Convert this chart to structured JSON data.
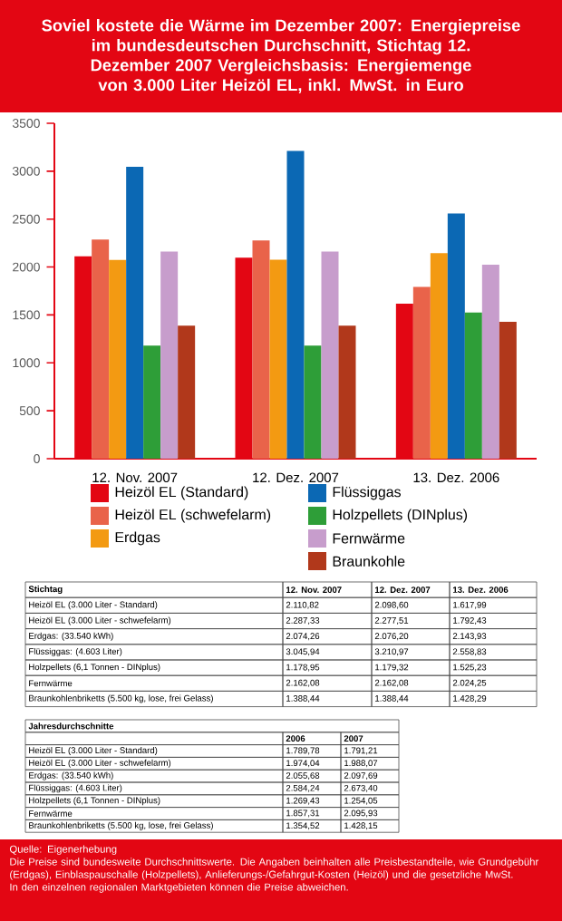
{
  "chart_data": [
    {
      "type": "bar",
      "title": "Soviel kostete die Wärme im Dezember 2007: Energiepreise im bundesdeutschen Durchschnitt, Stichtag 12. Dezember 2007 Vergleichsbasis: Energiemenge von 3.000 Liter Heizöl EL, inkl. MwSt. in Euro",
      "categories": [
        "12. Nov. 2007",
        "12. Dez. 2007",
        "13. Dez. 2006"
      ],
      "series": [
        {
          "name": "Heizöl EL (Standard)",
          "color": "#e30613",
          "values": [
            2110.82,
            2098.6,
            1617.99
          ]
        },
        {
          "name": "Heizöl EL (schwefelarm)",
          "color": "#e9634a",
          "values": [
            2287.33,
            2277.51,
            1792.43
          ]
        },
        {
          "name": "Erdgas",
          "color": "#f39a12",
          "values": [
            2074.26,
            2076.2,
            2143.93
          ]
        },
        {
          "name": "Flüssiggas",
          "color": "#0b68b4",
          "values": [
            3045.94,
            3210.97,
            2558.83
          ]
        },
        {
          "name": "Holzpellets (DINplus)",
          "color": "#2e9e38",
          "values": [
            1178.95,
            1179.32,
            1525.23
          ]
        },
        {
          "name": "Fernwärme",
          "color": "#c79dcc",
          "values": [
            2162.08,
            2162.08,
            2024.25
          ]
        },
        {
          "name": "Braunkohle",
          "color": "#b1381b",
          "values": [
            1388.44,
            1388.44,
            1428.29
          ]
        }
      ],
      "ylim": [
        0,
        3500
      ],
      "yticks": [
        0,
        500,
        1000,
        1500,
        2000,
        2500,
        3000,
        3500
      ],
      "legend": "bottom",
      "annotations": [
        "Quelle: Eigenerhebung",
        "Die Preise sind bundesweite Durchschnittswerte. Die Angaben beinhalten alle Preisbestandteile, wie Grundgebühr (Erdgas), Einblaspauschalle (Holzpellets), Anlieferungs-/Gefahrgut-Kosten (Heizöl) und die gesetzliche MwSt.",
        "In den einzelnen regionalen Marktgebieten können die Preise abweichen."
      ]
    },
    {
      "type": "other",
      "title": "Stichtag",
      "categories": [
        "Heizöl EL (3.000 Liter - Standard)",
        "Heizöl EL (3.000 Liter - schwefelarm)",
        "Erdgas: (33.540 kWh)",
        "Flüssiggas: (4.603 Liter)",
        "Holzpellets (6,1 Tonnen - DINplus)",
        "Fernwärme",
        "Braunkohlenbriketts (5.500 kg, lose, frei Gelass)"
      ],
      "series": [
        {
          "name": "12. Nov. 2007",
          "values": [
            2110.82,
            2287.33,
            2074.26,
            3045.94,
            1178.95,
            2162.08,
            1388.44
          ],
          "value_labels": [
            "2.110,82",
            "2.287,33",
            "2.074,26",
            "3.045,94",
            "1.178,95",
            "2.162,08",
            "1.388,44"
          ]
        },
        {
          "name": "12. Dez. 2007",
          "values": [
            2098.6,
            2277.51,
            2076.2,
            3210.97,
            1179.32,
            2162.08,
            1388.44
          ],
          "value_labels": [
            "2.098,60",
            "2.277,51",
            "2.076,20",
            "3.210,97",
            "1.179,32",
            "2.162,08",
            "1.388,44"
          ]
        },
        {
          "name": "13. Dez. 2006",
          "values": [
            1617.99,
            1792.43,
            2143.93,
            2558.83,
            1525.23,
            2024.25,
            1428.29
          ],
          "value_labels": [
            "1.617,99",
            "1.792,43",
            "2.143,93",
            "2.558,83",
            "1.525,23",
            "2.024,25",
            "1.428,29"
          ]
        }
      ]
    },
    {
      "type": "other",
      "title": "Jahresdurchschnitte",
      "categories": [
        "Heizöl EL (3.000 Liter - Standard)",
        "Heizöl EL (3.000 Liter - schwefelarm)",
        "Erdgas: (33.540 kWh)",
        "Flüssiggas: (4.603 Liter)",
        "Holzpellets (6,1 Tonnen - DINplus)",
        "Fernwärme",
        "Braunkohlenbriketts (5.500 kg, lose, frei Gelass)"
      ],
      "series": [
        {
          "name": "2006",
          "values": [
            1789.78,
            1974.04,
            2055.68,
            2584.24,
            1269.43,
            1857.31,
            1354.52
          ],
          "value_labels": [
            "1.789,78",
            "1.974,04",
            "2.055,68",
            "2.584,24",
            "1.269,43",
            "1.857,31",
            "1.354,52"
          ]
        },
        {
          "name": "2007",
          "values": [
            1791.21,
            1988.07,
            2097.69,
            2673.4,
            1254.05,
            2095.93,
            1428.15
          ],
          "value_labels": [
            "1.791,21",
            "1.988,07",
            "2.097,69",
            "2.673,40",
            "1.254,05",
            "2.095,93",
            "1.428,15"
          ]
        }
      ]
    }
  ]
}
